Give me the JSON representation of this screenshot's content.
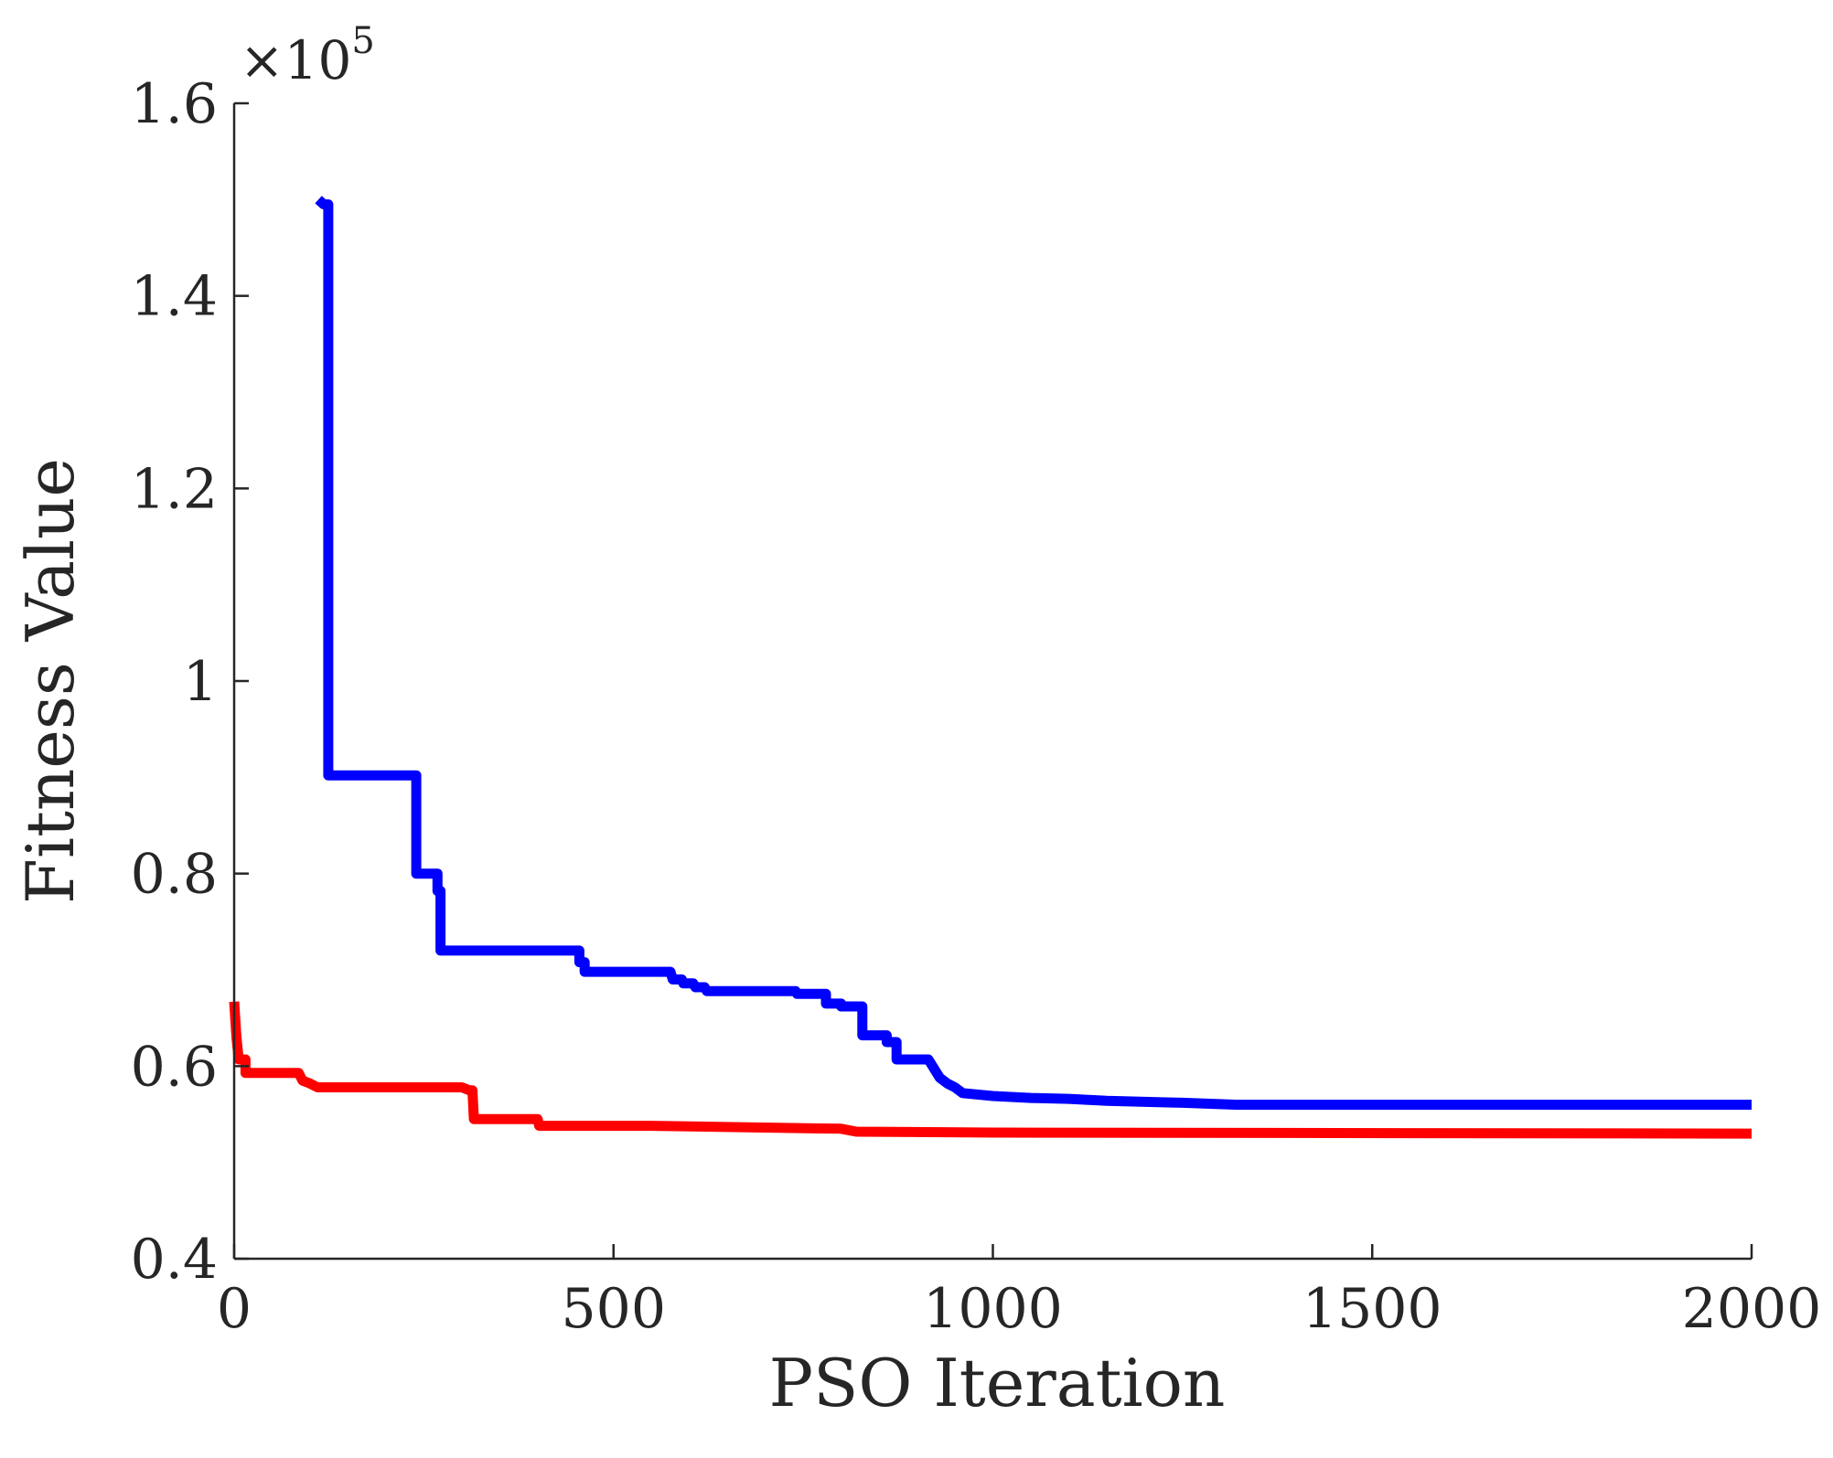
{
  "chart_data": {
    "type": "line",
    "title": "",
    "xlabel": "PSO Iteration",
    "ylabel": "Fitness Value",
    "y_exponent_label": "×10^5",
    "y_exponent_base": "×10",
    "y_exponent_power": "5",
    "xlim": [
      0,
      2000
    ],
    "ylim": [
      0.4,
      1.6
    ],
    "xticks": [
      0,
      500,
      1000,
      1500,
      2000
    ],
    "xtick_labels": [
      "0",
      "500",
      "1000",
      "1500",
      "2000"
    ],
    "yticks": [
      0.4,
      0.6,
      0.8,
      1.0,
      1.2,
      1.4,
      1.6
    ],
    "ytick_labels": [
      "0.4",
      "0.6",
      "0.8",
      "1",
      "1.2",
      "1.4",
      "1.6"
    ],
    "grid": false,
    "series": [
      {
        "name": "blue",
        "color": "#0000ff",
        "points": [
          [
            111,
            1.5
          ],
          [
            118,
            1.495
          ],
          [
            124,
            1.495
          ],
          [
            124,
            0.902
          ],
          [
            240,
            0.902
          ],
          [
            240,
            0.8
          ],
          [
            268,
            0.8
          ],
          [
            268,
            0.782
          ],
          [
            272,
            0.782
          ],
          [
            272,
            0.72
          ],
          [
            455,
            0.72
          ],
          [
            455,
            0.708
          ],
          [
            462,
            0.708
          ],
          [
            462,
            0.698
          ],
          [
            575,
            0.698
          ],
          [
            578,
            0.69
          ],
          [
            590,
            0.69
          ],
          [
            592,
            0.686
          ],
          [
            605,
            0.686
          ],
          [
            608,
            0.682
          ],
          [
            620,
            0.682
          ],
          [
            623,
            0.678
          ],
          [
            740,
            0.678
          ],
          [
            742,
            0.675
          ],
          [
            780,
            0.675
          ],
          [
            780,
            0.665
          ],
          [
            800,
            0.665
          ],
          [
            800,
            0.662
          ],
          [
            828,
            0.662
          ],
          [
            828,
            0.632
          ],
          [
            860,
            0.632
          ],
          [
            860,
            0.625
          ],
          [
            873,
            0.625
          ],
          [
            873,
            0.607
          ],
          [
            915,
            0.607
          ],
          [
            922,
            0.598
          ],
          [
            930,
            0.588
          ],
          [
            940,
            0.582
          ],
          [
            950,
            0.578
          ],
          [
            960,
            0.572
          ],
          [
            1000,
            0.569
          ],
          [
            1050,
            0.567
          ],
          [
            1100,
            0.566
          ],
          [
            1150,
            0.564
          ],
          [
            1250,
            0.562
          ],
          [
            1320,
            0.56
          ],
          [
            2000,
            0.56
          ]
        ]
      },
      {
        "name": "red",
        "color": "#ff0000",
        "points": [
          [
            0,
            0.667
          ],
          [
            3,
            0.63
          ],
          [
            6,
            0.607
          ],
          [
            15,
            0.607
          ],
          [
            15,
            0.593
          ],
          [
            85,
            0.593
          ],
          [
            90,
            0.585
          ],
          [
            100,
            0.582
          ],
          [
            110,
            0.578
          ],
          [
            300,
            0.578
          ],
          [
            310,
            0.575
          ],
          [
            314,
            0.575
          ],
          [
            316,
            0.545
          ],
          [
            400,
            0.545
          ],
          [
            402,
            0.538
          ],
          [
            550,
            0.538
          ],
          [
            800,
            0.535
          ],
          [
            820,
            0.532
          ],
          [
            1000,
            0.531
          ],
          [
            2000,
            0.53
          ]
        ]
      }
    ]
  }
}
